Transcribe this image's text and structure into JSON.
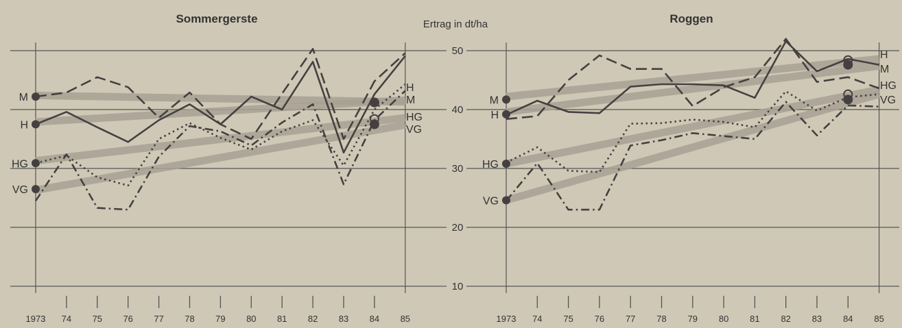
{
  "unit_label": "Ertrag in dt/ha",
  "colors": {
    "background": "#cfc8b6",
    "grid": "#555555",
    "line": "#454040",
    "trend": "#a9a294"
  },
  "chart_data": [
    {
      "type": "line",
      "title": "Sommergerste",
      "ylabel": "Ertrag in dt/ha",
      "x": [
        1973,
        1974,
        1975,
        1976,
        1977,
        1978,
        1979,
        1980,
        1981,
        1982,
        1983,
        1984,
        1985
      ],
      "x_tick_labels": [
        "1973",
        "74",
        "75",
        "76",
        "77",
        "78",
        "79",
        "80",
        "81",
        "82",
        "83",
        "84",
        "85"
      ],
      "ylim": [
        10,
        50
      ],
      "yticks": [
        10,
        20,
        30,
        40,
        50
      ],
      "series": [
        {
          "name": "M",
          "style": "dashed",
          "values": [
            42.2,
            42.9,
            45.5,
            43.8,
            38.6,
            42.9,
            37.5,
            35.0,
            42.7,
            50.3,
            35.0,
            44.8,
            49.6
          ],
          "trend": [
            42.4,
            41.3
          ],
          "start_marker": 42.2,
          "end_marker": {
            "value": 41.2,
            "filled": true
          }
        },
        {
          "name": "H",
          "style": "solid",
          "values": [
            37.5,
            39.6,
            37.0,
            34.5,
            38.2,
            40.9,
            37.5,
            42.2,
            40.0,
            48.1,
            32.7,
            42.6,
            49.1
          ],
          "trend": [
            37.9,
            41.6
          ],
          "start_marker": 37.5,
          "end_marker": {
            "value": 41.2,
            "filled": false
          }
        },
        {
          "name": "HG",
          "style": "dotted",
          "values": [
            30.9,
            32.2,
            28.5,
            27.1,
            35.0,
            37.7,
            35.2,
            33.2,
            36.3,
            38.2,
            30.5,
            40.0,
            44.3
          ],
          "trend": [
            31.3,
            38.6
          ],
          "start_marker": 30.9,
          "end_marker": {
            "value": 38.4,
            "filled": false
          }
        },
        {
          "name": "VG",
          "style": "dashdot",
          "values": [
            24.5,
            32.4,
            23.3,
            23.0,
            32.0,
            37.2,
            36.3,
            33.9,
            37.8,
            40.9,
            27.3,
            38.2,
            43.2
          ],
          "trend": [
            26.3,
            37.4
          ],
          "start_marker": 26.5,
          "end_marker": {
            "value": 37.5,
            "filled": true
          }
        }
      ],
      "end_labels": [
        "H",
        "M",
        "HG",
        "VG"
      ]
    },
    {
      "type": "line",
      "title": "Roggen",
      "ylabel": "Ertrag in dt/ha",
      "x": [
        1973,
        1974,
        1975,
        1976,
        1977,
        1978,
        1979,
        1980,
        1981,
        1982,
        1983,
        1984,
        1985
      ],
      "x_tick_labels": [
        "1973",
        "74",
        "75",
        "76",
        "77",
        "78",
        "79",
        "80",
        "81",
        "82",
        "83",
        "84",
        "85"
      ],
      "ylim": [
        10,
        50
      ],
      "yticks": [
        10,
        20,
        30,
        40,
        50
      ],
      "series": [
        {
          "name": "M",
          "style": "dashed",
          "values": [
            38.4,
            38.9,
            45.0,
            49.2,
            46.9,
            46.9,
            40.6,
            43.8,
            45.5,
            52.0,
            44.7,
            45.5,
            43.6
          ],
          "trend": [
            42.2,
            48.6
          ],
          "start_marker": 41.7,
          "end_marker": {
            "value": 47.6,
            "filled": true
          }
        },
        {
          "name": "H",
          "style": "solid",
          "values": [
            39.1,
            41.5,
            39.6,
            39.4,
            43.9,
            44.3,
            44.3,
            44.1,
            42.0,
            51.6,
            46.5,
            48.6,
            47.6
          ],
          "trend": [
            39.6,
            47.4
          ],
          "start_marker": 39.2,
          "end_marker": {
            "value": 48.4,
            "filled": false
          }
        },
        {
          "name": "HG",
          "style": "dotted",
          "values": [
            31.0,
            33.6,
            29.6,
            29.4,
            37.6,
            37.7,
            38.3,
            37.9,
            37.0,
            43.1,
            39.8,
            42.1,
            42.6
          ],
          "trend": [
            30.8,
            43.4
          ],
          "start_marker": 30.8,
          "end_marker": {
            "value": 42.6,
            "filled": false
          }
        },
        {
          "name": "VG",
          "style": "dashdot",
          "values": [
            24.5,
            30.9,
            23.0,
            23.0,
            33.9,
            34.8,
            36.0,
            35.5,
            35.0,
            41.3,
            35.6,
            40.7,
            40.5
          ],
          "trend": [
            24.6,
            42.6
          ],
          "start_marker": 24.6,
          "end_marker": {
            "value": 41.7,
            "filled": true
          }
        }
      ],
      "end_labels": [
        "H",
        "M",
        "HG",
        "VG"
      ]
    }
  ]
}
